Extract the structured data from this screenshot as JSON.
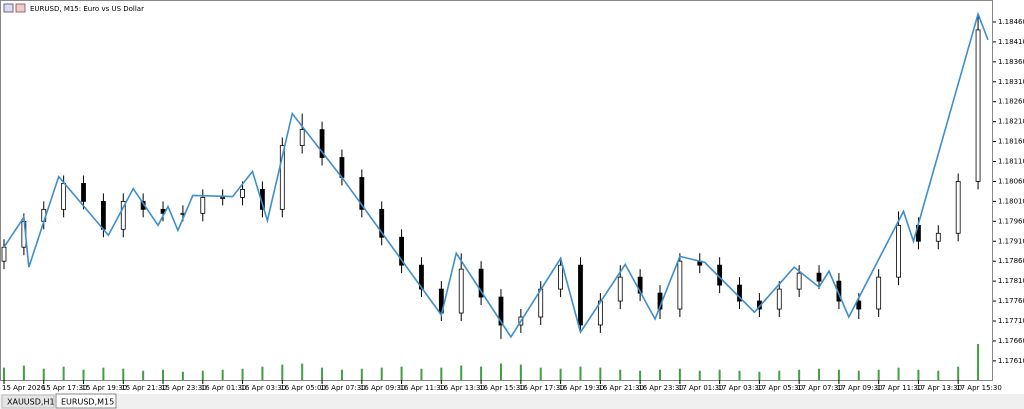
{
  "header": {
    "title": "EURUSD, M15:  Euro vs US Dollar"
  },
  "tabs": [
    "XAUUSD,H1",
    "EURUSD,M15"
  ],
  "chart_data": {
    "type": "candlestick",
    "xlim": [
      0,
      198
    ],
    "ylim": [
      1.17562,
      1.1849
    ],
    "x": [
      0,
      4,
      8,
      12,
      16,
      20,
      24,
      28,
      32,
      36,
      40,
      44,
      48,
      52,
      56,
      60,
      64,
      68,
      72,
      76,
      80,
      84,
      88,
      92,
      96,
      100,
      104,
      108,
      112,
      116,
      120,
      124,
      128,
      132,
      136,
      140,
      144,
      148,
      152,
      156,
      160,
      164,
      168,
      172,
      176,
      180,
      184,
      188,
      192,
      196
    ],
    "open": [
      1.1786,
      1.17895,
      1.1796,
      1.1799,
      1.18055,
      1.1801,
      1.1794,
      1.1801,
      1.1799,
      1.1798,
      1.1798,
      1.1802,
      1.1802,
      1.1804,
      1.1799,
      1.1815,
      1.1819,
      1.1812,
      1.1807,
      1.1799,
      1.1792,
      1.1785,
      1.1779,
      1.1773,
      1.1784,
      1.1777,
      1.177,
      1.1772,
      1.1779,
      1.1785,
      1.177,
      1.1776,
      1.1782,
      1.1778,
      1.1774,
      1.1786,
      1.1785,
      1.178,
      1.1776,
      1.1774,
      1.1779,
      1.1783,
      1.1781,
      1.1776,
      1.1774,
      1.1782,
      1.1795,
      1.1791,
      1.1793,
      1.1806
    ],
    "high": [
      1.17915,
      1.1798,
      1.1801,
      1.18075,
      1.18075,
      1.1803,
      1.1803,
      1.1803,
      1.1801,
      1.18,
      1.1804,
      1.1804,
      1.1806,
      1.1806,
      1.1817,
      1.1823,
      1.1821,
      1.1814,
      1.1809,
      1.1801,
      1.1794,
      1.1787,
      1.1781,
      1.1788,
      1.1786,
      1.1779,
      1.1774,
      1.1781,
      1.1787,
      1.1787,
      1.1778,
      1.1785,
      1.1784,
      1.178,
      1.1788,
      1.1788,
      1.1787,
      1.1782,
      1.1778,
      1.1781,
      1.1785,
      1.1785,
      1.1783,
      1.1778,
      1.1784,
      1.17985,
      1.1797,
      1.1795,
      1.1808,
      1.1848
    ],
    "low": [
      1.1784,
      1.17875,
      1.1794,
      1.1797,
      1.1799,
      1.1792,
      1.1792,
      1.1797,
      1.1796,
      1.1796,
      1.1796,
      1.18,
      1.18,
      1.1797,
      1.1797,
      1.1813,
      1.181,
      1.1805,
      1.1797,
      1.179,
      1.1783,
      1.1777,
      1.1771,
      1.1771,
      1.1775,
      1.17665,
      1.1768,
      1.177,
      1.1777,
      1.1768,
      1.1768,
      1.1774,
      1.1776,
      1.17715,
      1.1772,
      1.1783,
      1.1778,
      1.1774,
      1.1772,
      1.1772,
      1.1777,
      1.1779,
      1.1774,
      1.17715,
      1.1772,
      1.178,
      1.1789,
      1.1789,
      1.1791,
      1.1804
    ],
    "close": [
      1.17895,
      1.1796,
      1.1799,
      1.18055,
      1.1801,
      1.1794,
      1.1801,
      1.1799,
      1.1798,
      1.1798,
      1.1802,
      1.1802,
      1.1804,
      1.1799,
      1.1815,
      1.1819,
      1.1812,
      1.1807,
      1.1799,
      1.1792,
      1.1785,
      1.1779,
      1.1773,
      1.1784,
      1.1777,
      1.177,
      1.1772,
      1.1779,
      1.1785,
      1.177,
      1.1776,
      1.1782,
      1.1778,
      1.1774,
      1.1786,
      1.1785,
      1.178,
      1.1776,
      1.1774,
      1.1779,
      1.1783,
      1.1781,
      1.1776,
      1.1774,
      1.1782,
      1.1795,
      1.1791,
      1.1793,
      1.1806,
      1.1844
    ],
    "volume": [
      1200,
      1400,
      1100,
      1300,
      1000,
      1200,
      1100,
      900,
      1000,
      800,
      900,
      1000,
      1100,
      1300,
      1500,
      1600,
      1200,
      1000,
      1100,
      1200,
      1300,
      1100,
      1200,
      1400,
      1300,
      1600,
      1500,
      1200,
      1100,
      1300,
      1200,
      1000,
      900,
      1000,
      1100,
      900,
      1000,
      900,
      800,
      900,
      1000,
      1100,
      1000,
      900,
      1000,
      1200,
      1000,
      900,
      1300,
      3500
    ],
    "volume_color": "#3fa03f",
    "zigzag": {
      "color": "#3d8fcc",
      "x": [
        0,
        4,
        5,
        11,
        21,
        26,
        31,
        33,
        35,
        38,
        46,
        50,
        53,
        58,
        68,
        88,
        91,
        102,
        112,
        116,
        125,
        131,
        136,
        141,
        151,
        159,
        164,
        166,
        170,
        181,
        183,
        196,
        198
      ],
      "values": [
        1.17895,
        1.1797,
        1.17845,
        1.18072,
        1.17925,
        1.18042,
        1.1795,
        1.17997,
        1.17937,
        1.18025,
        1.18022,
        1.18085,
        1.17962,
        1.1823,
        1.1807,
        1.17725,
        1.1788,
        1.1767,
        1.17867,
        1.17682,
        1.17852,
        1.17715,
        1.17872,
        1.17857,
        1.17732,
        1.17845,
        1.17795,
        1.17835,
        1.1772,
        1.17985,
        1.1791,
        1.1848,
        1.18415
      ]
    },
    "yticks": [
      {
        "value": 1.1846,
        "label": "1.18460"
      },
      {
        "value": 1.1841,
        "label": "1.18410"
      },
      {
        "value": 1.1836,
        "label": "1.18360"
      },
      {
        "value": 1.1831,
        "label": "1.18310"
      },
      {
        "value": 1.1826,
        "label": "1.18260"
      },
      {
        "value": 1.1821,
        "label": "1.18210"
      },
      {
        "value": 1.1816,
        "label": "1.18160"
      },
      {
        "value": 1.1811,
        "label": "1.18110"
      },
      {
        "value": 1.1806,
        "label": "1.18060"
      },
      {
        "value": 1.1801,
        "label": "1.18010"
      },
      {
        "value": 1.1796,
        "label": "1.17960"
      },
      {
        "value": 1.1791,
        "label": "1.17910"
      },
      {
        "value": 1.1786,
        "label": "1.17860"
      },
      {
        "value": 1.1781,
        "label": "1.17810"
      },
      {
        "value": 1.1776,
        "label": "1.17760"
      },
      {
        "value": 1.1771,
        "label": "1.17710"
      },
      {
        "value": 1.1766,
        "label": "1.17660"
      },
      {
        "value": 1.1761,
        "label": "1.17610"
      }
    ],
    "xticks": [
      {
        "value": 0,
        "label": "15 Apr 2026"
      },
      {
        "value": 8,
        "label": "15 Apr 17:30"
      },
      {
        "value": 16,
        "label": "15 Apr 19:30"
      },
      {
        "value": 24,
        "label": "15 Apr 21:30"
      },
      {
        "value": 32,
        "label": "15 Apr 23:30"
      },
      {
        "value": 40,
        "label": "16 Apr 01:30"
      },
      {
        "value": 48,
        "label": "16 Apr 03:30"
      },
      {
        "value": 56,
        "label": "16 Apr 05:00"
      },
      {
        "value": 64,
        "label": "16 Apr 07:30"
      },
      {
        "value": 72,
        "label": "16 Apr 09:30"
      },
      {
        "value": 80,
        "label": "16 Apr 11:30"
      },
      {
        "value": 88,
        "label": "16 Apr 13:30"
      },
      {
        "value": 96,
        "label": "16 Apr 15:30"
      },
      {
        "value": 104,
        "label": "16 Apr 17:30"
      },
      {
        "value": 112,
        "label": "16 Apr 19:30"
      },
      {
        "value": 120,
        "label": "16 Apr 21:30"
      },
      {
        "value": 128,
        "label": "16 Apr 23:30"
      },
      {
        "value": 136,
        "label": "17 Apr 01:30"
      },
      {
        "value": 144,
        "label": "17 Apr 03:30"
      },
      {
        "value": 152,
        "label": "17 Apr 05:30"
      },
      {
        "value": 160,
        "label": "17 Apr 07:30"
      },
      {
        "value": 168,
        "label": "17 Apr 09:30"
      },
      {
        "value": 176,
        "label": "17 Apr 11:30"
      },
      {
        "value": 184,
        "label": "17 Apr 13:30"
      },
      {
        "value": 192,
        "label": "17 Apr 15:30"
      }
    ]
  }
}
